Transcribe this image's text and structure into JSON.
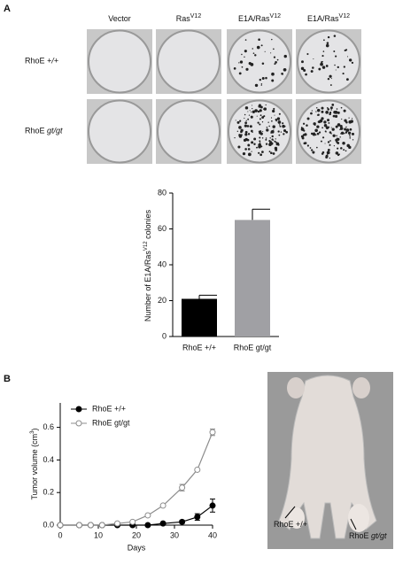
{
  "panel_labels": [
    "A",
    "B"
  ],
  "plates": {
    "columns": [
      {
        "text": "Vector"
      },
      {
        "text": "Ras",
        "sup": "V12"
      },
      {
        "text": "E1A/Ras",
        "sup": "V12"
      },
      {
        "text": "E1A/Ras",
        "sup": "V12"
      }
    ],
    "rows": [
      {
        "name": "RhoE",
        "genotype": "+/+"
      },
      {
        "name": "RhoE",
        "genotype": "gt/gt"
      }
    ]
  },
  "chart_data": [
    {
      "type": "bar",
      "y_label": {
        "text": "Number of E1A/Ras",
        "sup": "V12",
        "after": " colonies"
      },
      "categories": [
        "RhoE +/+",
        "RhoE gt/gt"
      ],
      "values": [
        21,
        65
      ],
      "errors": [
        2,
        6
      ],
      "colors": [
        "#000000",
        "#a0a0a4"
      ],
      "ylim": [
        0,
        80
      ],
      "yticks": [
        0,
        20,
        40,
        60,
        80
      ]
    },
    {
      "type": "line",
      "x_label": "Days",
      "y_label": {
        "text": "Tumor volume (cm",
        "sup": "3",
        "after": ")"
      },
      "x": [
        0,
        5,
        8,
        11,
        15,
        19,
        23,
        27,
        32,
        36,
        40
      ],
      "series": [
        {
          "name": "RhoE +/+",
          "color": "#000000",
          "marker": "filled",
          "values": [
            0,
            0,
            0,
            0,
            0,
            0,
            0,
            0.01,
            0.02,
            0.05,
            0.12
          ],
          "errors": [
            null,
            null,
            null,
            null,
            null,
            null,
            null,
            null,
            0.01,
            0.02,
            0.04
          ]
        },
        {
          "name": "RhoE gt/gt",
          "color": "#8c8c8c",
          "marker": "open",
          "values": [
            0,
            0,
            0,
            0,
            0.01,
            0.02,
            0.06,
            0.12,
            0.23,
            0.34,
            0.57
          ],
          "errors": [
            null,
            null,
            null,
            null,
            null,
            null,
            null,
            null,
            0.02,
            null,
            0.02
          ]
        }
      ],
      "xlim": [
        0,
        40
      ],
      "xticks": [
        0,
        10,
        20,
        30,
        40
      ],
      "ylim": [
        0,
        0.75
      ],
      "yticks": [
        {
          "value": 0,
          "label": "0.0"
        },
        0.2,
        0.4,
        0.6
      ],
      "legend": "top-left"
    }
  ],
  "photo": {
    "labels": [
      {
        "name": "RhoE",
        "genotype": "+/+"
      },
      {
        "name": "RhoE",
        "genotype": "gt/gt"
      }
    ]
  }
}
